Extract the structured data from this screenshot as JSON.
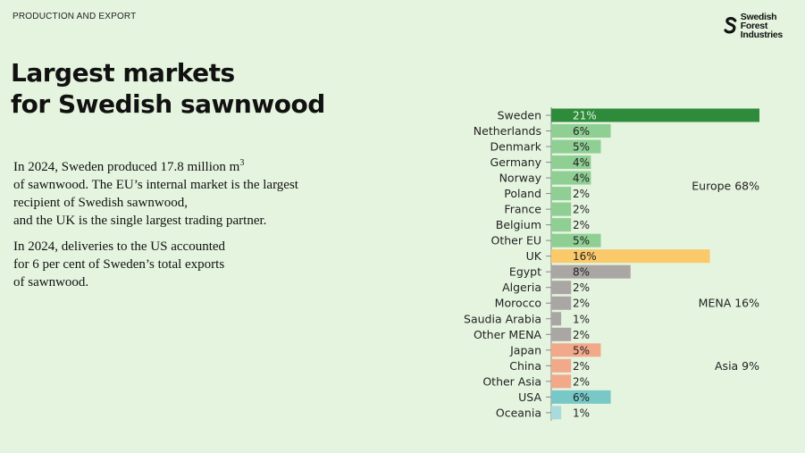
{
  "header": {
    "section": "PRODUCTION AND EXPORT",
    "logo_text_1": "Swedish Forest",
    "logo_text_2": "Industries"
  },
  "title_line1": "Largest markets",
  "title_line2": "for Swedish sawnwood",
  "paragraph1_lines": [
    "In 2024, Sweden produced 17.8 million m",
    "of sawnwood. The EU’s internal market is the largest",
    "recipient of Swedish sawnwood,",
    "and the UK is the single largest trading partner."
  ],
  "paragraph1_sup": "3",
  "paragraph2_lines": [
    "In 2024, deliveries to the US accounted",
    "for 6 per cent of Sweden’s total exports",
    "of sawnwood."
  ],
  "chart_data": {
    "type": "bar",
    "orientation": "horizontal",
    "categories": [
      "Sweden",
      "Netherlands",
      "Denmark",
      "Germany",
      "Norway",
      "Poland",
      "France",
      "Belgium",
      "Other EU",
      "UK",
      "Egypt",
      "Algeria",
      "Morocco",
      "Saudia Arabia",
      "Other MENA",
      "Japan",
      "China",
      "Other Asia",
      "USA",
      "Oceania"
    ],
    "values": [
      21,
      6,
      5,
      4,
      4,
      2,
      2,
      2,
      5,
      16,
      8,
      2,
      2,
      1,
      2,
      5,
      2,
      2,
      6,
      1
    ],
    "labels": [
      "21%",
      "6%",
      "5%",
      "4%",
      "4%",
      "2%",
      "2%",
      "2%",
      "5%",
      "16%",
      "8%",
      "2%",
      "2%",
      "1%",
      "2%",
      "5%",
      "2%",
      "2%",
      "6%",
      "1%"
    ],
    "colors": [
      "#2e8b3c",
      "#8fcf94",
      "#8fcf94",
      "#8fcf94",
      "#8fcf94",
      "#8fcf94",
      "#8fcf94",
      "#8fcf94",
      "#8fcf94",
      "#f9c96a",
      "#aaa6a4",
      "#aaa6a4",
      "#aaa6a4",
      "#aaa6a4",
      "#aaa6a4",
      "#f2a98a",
      "#f2a98a",
      "#f2a98a",
      "#78c8c8",
      "#a8dcdc"
    ],
    "unit": "%",
    "group_labels": [
      {
        "text": "Europe 68%",
        "row": 4.5
      },
      {
        "text": "MENA 16%",
        "row": 12
      },
      {
        "text": "Asia 9%",
        "row": 16
      }
    ]
  }
}
